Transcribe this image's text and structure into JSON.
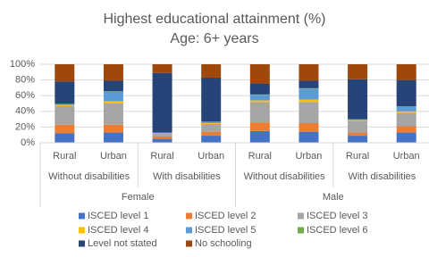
{
  "chart_data": {
    "type": "stacked_bar",
    "title": "Highest educational attainment (%)",
    "subtitle": "Age: 6+ years",
    "categories": [
      "Rural",
      "Urban",
      "Rural",
      "Urban",
      "Rural",
      "Urban",
      "Rural",
      "Urban"
    ],
    "category_groups": [
      [
        "Without disabilities",
        "With disabilities",
        "Without disabilities",
        "With disabilities"
      ],
      [
        "Female",
        "Male"
      ]
    ],
    "series": [
      {
        "name": "ISCED level 1",
        "color": "#4472c4",
        "values": [
          12,
          13,
          5,
          9,
          15,
          14,
          9,
          13
        ]
      },
      {
        "name": "ISCED level 2",
        "color": "#ed7d31",
        "values": [
          11,
          10,
          3,
          5,
          11,
          11,
          4,
          8
        ]
      },
      {
        "name": "ISCED level 3",
        "color": "#a5a5a5",
        "values": [
          24,
          27,
          4,
          10,
          26,
          27,
          15,
          17
        ]
      },
      {
        "name": "ISCED level 4",
        "color": "#ffc000",
        "values": [
          1,
          3,
          0.5,
          1,
          2,
          3,
          1,
          2
        ]
      },
      {
        "name": "ISCED level 5",
        "color": "#5b9bd5",
        "values": [
          1,
          12,
          0.5,
          2,
          7,
          14,
          1,
          6
        ]
      },
      {
        "name": "ISCED level 6",
        "color": "#70ad47",
        "values": [
          0.5,
          0.5,
          0,
          0,
          0.5,
          0.5,
          0,
          0.5
        ]
      },
      {
        "name": "Level not stated",
        "color": "#264478",
        "values": [
          28.5,
          13.5,
          76,
          56,
          13.5,
          9.5,
          51,
          33.5
        ]
      },
      {
        "name": "No schooling",
        "color": "#9e480e",
        "values": [
          22,
          21,
          11,
          17,
          25,
          21,
          19,
          20
        ]
      }
    ],
    "ylim": [
      0,
      100
    ],
    "yticks": [
      {
        "value": 0,
        "label": "0%"
      },
      {
        "value": 20,
        "label": "20%"
      },
      {
        "value": 40,
        "label": "40%"
      },
      {
        "value": 60,
        "label": "60%"
      },
      {
        "value": 80,
        "label": "80%"
      },
      {
        "value": 100,
        "label": "100%"
      }
    ],
    "grid": true,
    "legend": "bottom"
  }
}
